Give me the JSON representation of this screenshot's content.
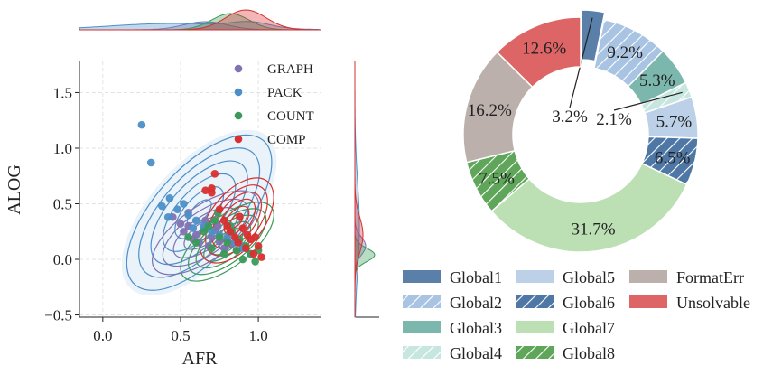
{
  "chart_data": [
    {
      "type": "scatter",
      "xlabel": "AFR",
      "ylabel": "ALOG",
      "xlim": [
        -0.15,
        1.4
      ],
      "ylim": [
        -0.52,
        1.78
      ],
      "xticks": [
        0.0,
        0.5,
        1.0
      ],
      "xtick_labels": [
        "0.0",
        "0.5",
        "1.0"
      ],
      "yticks": [
        -0.5,
        0.0,
        0.5,
        1.0,
        1.5
      ],
      "ytick_labels": [
        "−0.5",
        "0.0",
        "0.5",
        "1.0",
        "1.5"
      ],
      "grid": true,
      "legend_position": "top-right",
      "marginal_plots": "kde",
      "series": [
        {
          "name": "GRAPH",
          "color": "#8172b2",
          "points": [
            [
              0.45,
              0.38
            ],
            [
              0.52,
              0.25
            ],
            [
              0.55,
              0.3
            ],
            [
              0.58,
              0.18
            ],
            [
              0.6,
              0.22
            ],
            [
              0.62,
              0.15
            ],
            [
              0.65,
              0.28
            ],
            [
              0.68,
              0.12
            ],
            [
              0.7,
              0.2
            ],
            [
              0.72,
              0.26
            ],
            [
              0.75,
              0.16
            ],
            [
              0.78,
              0.1
            ],
            [
              0.8,
              0.18
            ],
            [
              0.83,
              0.14
            ],
            [
              0.86,
              0.08
            ],
            [
              0.9,
              0.12
            ],
            [
              0.55,
              0.42
            ],
            [
              0.5,
              0.32
            ],
            [
              0.66,
              0.35
            ],
            [
              0.74,
              0.3
            ]
          ]
        },
        {
          "name": "PACK",
          "color": "#4c8fc8",
          "points": [
            [
              0.25,
              1.21
            ],
            [
              0.31,
              0.87
            ],
            [
              0.43,
              0.55
            ],
            [
              0.38,
              0.48
            ],
            [
              0.48,
              0.45
            ],
            [
              0.55,
              0.4
            ],
            [
              0.6,
              0.35
            ],
            [
              0.65,
              0.3
            ],
            [
              0.7,
              0.25
            ],
            [
              0.75,
              0.22
            ],
            [
              0.8,
              0.2
            ],
            [
              0.85,
              0.15
            ],
            [
              0.9,
              0.1
            ],
            [
              0.95,
              0.05
            ],
            [
              0.42,
              0.38
            ],
            [
              0.58,
              0.28
            ],
            [
              0.52,
              0.5
            ]
          ]
        },
        {
          "name": "COUNT",
          "color": "#3a9a5a",
          "points": [
            [
              0.55,
              0.2
            ],
            [
              0.6,
              0.15
            ],
            [
              0.65,
              0.25
            ],
            [
              0.7,
              0.1
            ],
            [
              0.72,
              0.35
            ],
            [
              0.75,
              0.2
            ],
            [
              0.78,
              0.05
            ],
            [
              0.8,
              0.15
            ],
            [
              0.83,
              0.25
            ],
            [
              0.86,
              0.08
            ],
            [
              0.88,
              0.18
            ],
            [
              0.9,
              0.0
            ],
            [
              0.92,
              0.12
            ],
            [
              0.95,
              0.05
            ],
            [
              0.98,
              -0.02
            ],
            [
              1.0,
              0.08
            ],
            [
              0.74,
              0.42
            ],
            [
              0.68,
              0.3
            ],
            [
              0.82,
              0.3
            ]
          ]
        },
        {
          "name": "COMP",
          "color": "#d92f2f",
          "points": [
            [
              0.7,
              0.64
            ],
            [
              0.66,
              0.62
            ],
            [
              0.72,
              0.77
            ],
            [
              0.7,
              0.6
            ],
            [
              0.75,
              0.45
            ],
            [
              0.78,
              0.35
            ],
            [
              0.8,
              0.3
            ],
            [
              0.82,
              0.25
            ],
            [
              0.85,
              0.2
            ],
            [
              0.87,
              0.15
            ],
            [
              0.9,
              0.28
            ],
            [
              0.92,
              0.1
            ],
            [
              0.95,
              0.18
            ],
            [
              0.97,
              0.05
            ],
            [
              1.0,
              0.12
            ],
            [
              1.02,
              0.02
            ],
            [
              0.88,
              0.38
            ],
            [
              0.93,
              0.22
            ],
            [
              0.98,
              0.2
            ]
          ]
        }
      ]
    },
    {
      "type": "pie",
      "style": "donut",
      "labels": [
        "Global1",
        "Global2",
        "Global3",
        "Global4",
        "Global5",
        "Global6",
        "Global7",
        "Global8",
        "FormatErr",
        "Unsolvable"
      ],
      "values": [
        3.2,
        9.2,
        5.3,
        2.1,
        5.7,
        6.5,
        31.7,
        7.5,
        16.2,
        12.6
      ],
      "value_labels": [
        "3.2%",
        "9.2%",
        "5.3%",
        "2.1%",
        "5.7%",
        "6.5%",
        "31.7%",
        "7.5%",
        "16.2%",
        "12.6%"
      ],
      "colors": [
        "#5a7fa8",
        "#a9c4e3",
        "#7cb7ae",
        "#c8e6e0",
        "#bcd0e8",
        "#4f77a6",
        "#bcdfb4",
        "#5fa65a",
        "#bbb0ab",
        "#de6565"
      ],
      "hatched": [
        false,
        true,
        false,
        true,
        false,
        true,
        false,
        true,
        false,
        false
      ],
      "exploded": [
        "Global1"
      ],
      "legend_position": "bottom",
      "legend_columns": 3
    }
  ]
}
